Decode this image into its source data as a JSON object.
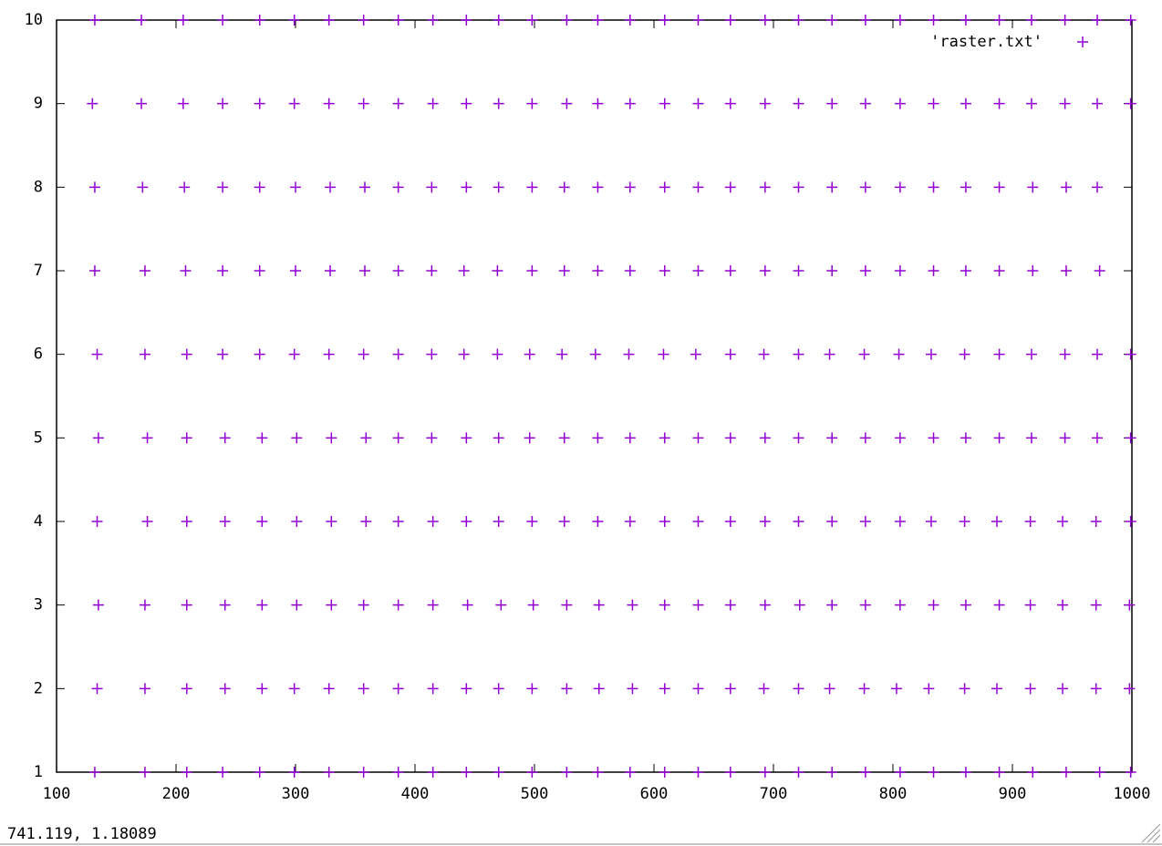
{
  "chart_data": {
    "type": "scatter",
    "xlim": [
      100,
      1000
    ],
    "ylim": [
      1,
      10
    ],
    "xticks": [
      100,
      200,
      300,
      400,
      500,
      600,
      700,
      800,
      900,
      1000
    ],
    "yticks": [
      1,
      2,
      3,
      4,
      5,
      6,
      7,
      8,
      9,
      10
    ],
    "series": [
      {
        "name": "'raster.txt'",
        "color": "#9400d3",
        "rows": [
          {
            "y": 10,
            "x": [
              132,
              171,
              206,
              239,
              270,
              299,
              328,
              357,
              386,
              415,
              443,
              470,
              498,
              527,
              553,
              580,
              609,
              637,
              664,
              693,
              721,
              749,
              777,
              806,
              834,
              861,
              889,
              916,
              944,
              971,
              999
            ]
          },
          {
            "y": 9,
            "x": [
              130,
              171,
              206,
              239,
              270,
              299,
              328,
              357,
              386,
              415,
              443,
              470,
              498,
              527,
              553,
              580,
              609,
              637,
              664,
              693,
              721,
              749,
              777,
              806,
              834,
              861,
              889,
              916,
              944,
              971,
              999
            ]
          },
          {
            "y": 8,
            "x": [
              132,
              172,
              207,
              239,
              270,
              300,
              329,
              358,
              386,
              414,
              443,
              470,
              498,
              525,
              553,
              580,
              609,
              637,
              664,
              693,
              721,
              749,
              777,
              806,
              834,
              861,
              889,
              917,
              945,
              971
            ]
          },
          {
            "y": 7,
            "x": [
              132,
              174,
              208,
              239,
              270,
              300,
              329,
              358,
              386,
              414,
              441,
              469,
              498,
              525,
              553,
              580,
              609,
              637,
              664,
              693,
              721,
              749,
              777,
              806,
              834,
              861,
              889,
              917,
              945,
              973
            ]
          },
          {
            "y": 6,
            "x": [
              134,
              174,
              209,
              239,
              270,
              299,
              328,
              357,
              386,
              414,
              441,
              469,
              496,
              523,
              551,
              579,
              608,
              635,
              664,
              692,
              721,
              747,
              776,
              805,
              832,
              860,
              889,
              916,
              944,
              971,
              999
            ]
          },
          {
            "y": 5,
            "x": [
              135,
              176,
              209,
              241,
              272,
              301,
              330,
              359,
              386,
              414,
              443,
              470,
              496,
              525,
              553,
              580,
              609,
              637,
              664,
              693,
              721,
              749,
              777,
              806,
              834,
              861,
              889,
              916,
              944,
              971,
              999
            ]
          },
          {
            "y": 4,
            "x": [
              134,
              176,
              209,
              241,
              272,
              301,
              330,
              359,
              386,
              415,
              443,
              470,
              498,
              525,
              553,
              580,
              609,
              637,
              664,
              693,
              721,
              749,
              777,
              806,
              832,
              860,
              887,
              915,
              942,
              970,
              999
            ]
          },
          {
            "y": 3,
            "x": [
              135,
              174,
              209,
              241,
              272,
              301,
              330,
              357,
              386,
              415,
              444,
              472,
              499,
              527,
              554,
              582,
              609,
              637,
              664,
              693,
              722,
              749,
              777,
              806,
              834,
              861,
              889,
              915,
              942,
              970,
              998
            ]
          },
          {
            "y": 2,
            "x": [
              134,
              174,
              209,
              241,
              272,
              299,
              328,
              357,
              386,
              415,
              443,
              470,
              498,
              527,
              554,
              582,
              609,
              637,
              664,
              692,
              721,
              747,
              776,
              803,
              830,
              860,
              887,
              915,
              942,
              970,
              998
            ]
          },
          {
            "y": 1,
            "x": [
              132,
              174,
              209,
              239,
              270,
              299,
              328,
              357,
              386,
              415,
              443,
              470,
              498,
              527,
              553,
              580,
              609,
              637,
              664,
              693,
              721,
              749,
              777,
              806,
              834,
              861,
              889,
              917,
              945,
              973,
              999
            ]
          }
        ]
      }
    ]
  },
  "status_bar": {
    "coordinates": "741.119,  1.18089"
  }
}
